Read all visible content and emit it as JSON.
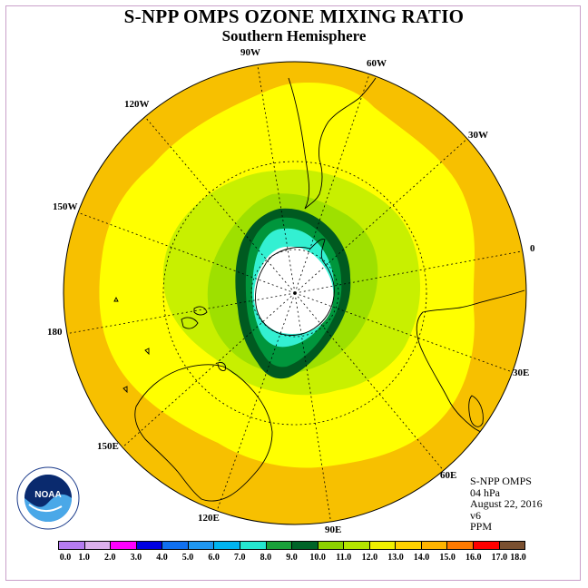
{
  "title": "S-NPP OMPS OZONE MIXING RATIO",
  "subtitle": "Southern Hemisphere",
  "lon_labels": {
    "l90w": "90W",
    "l60w": "60W",
    "l30w": "30W",
    "l0": "0",
    "l30e": "30E",
    "l60e": "60E",
    "l90e": "90E",
    "l120e": "120E",
    "l150e": "150E",
    "l180": "180",
    "l150w": "150W",
    "l120w": "120W"
  },
  "info": {
    "product": "S-NPP OMPS",
    "level": "04 hPa",
    "date": "August 22, 2016",
    "version": "v6",
    "units": "PPM"
  },
  "logo_text": "NOAA",
  "colorbar": {
    "colors": [
      "#b57cf0",
      "#dcb0ec",
      "#ff00ff",
      "#8a2be2",
      "#0000ff",
      "#0a78f0",
      "#1e96f0",
      "#00b4f0",
      "#24e8d0",
      "#1aa03a",
      "#007a2a",
      "#005a20",
      "#8cd200",
      "#b4e600",
      "#f0f000",
      "#ffd200",
      "#ffb400",
      "#ff8c00",
      "#ff3c00",
      "#ff0000",
      "#7a5030"
    ],
    "labels": [
      "0.0",
      "1.0",
      "2.0",
      "3.0",
      "4.0",
      "5.0",
      "6.0",
      "7.0",
      "8.0",
      "9.0",
      "10.0",
      "11.0",
      "12.0",
      "13.0",
      "14.0",
      "15.0",
      "16.0",
      "17.0",
      "18.0"
    ]
  },
  "colors": {
    "outer_band": "#f7c000",
    "yellow_band": "#ffff00",
    "light_green": "#c8f000",
    "mid_green": "#9ee000",
    "dark_green": "#008a3a",
    "deep_green": "#006428",
    "cyan": "#33f0d2",
    "coast": "#000000"
  }
}
